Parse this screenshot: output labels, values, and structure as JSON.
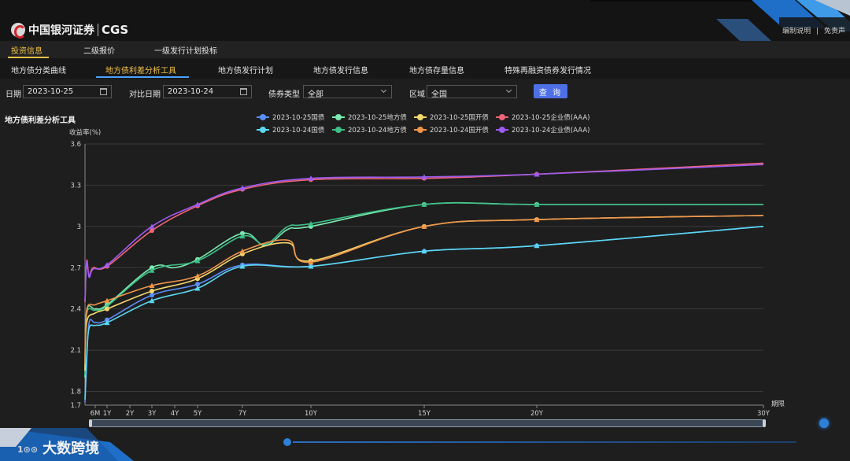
{
  "header": {
    "brand_cn": "中国银河证券",
    "brand_en": "CGS",
    "links": [
      "编制说明",
      "|",
      "免责声"
    ]
  },
  "nav1": [
    "投资信息",
    "二级报价",
    "一级发行计划投标"
  ],
  "nav2": [
    "地方债分类曲线",
    "地方债利差分析工具",
    "地方债发行计划",
    "地方债发行信息",
    "地方债存量信息",
    "特殊再融资债券发行情况"
  ],
  "filters": {
    "date_label": "日期",
    "date_value": "2023-10-25",
    "compare_label": "对比日期",
    "compare_value": "2023-10-24",
    "bond_type_label": "债券类型",
    "bond_type_value": "全部",
    "region_label": "区域",
    "region_value": "全国",
    "query_label": "查 询"
  },
  "chart_title": "地方债利差分析工具",
  "bottom_brand": "大数跨境",
  "bottom_brand_mark": "1⊙⊙",
  "colors": {
    "gov25": "#5b8ff9",
    "gov24": "#5ad8f2",
    "local25": "#7bebb0",
    "local24": "#3dbf86",
    "cdb25": "#f5d76e",
    "cdb24": "#f0954a",
    "corp25": "#f06478",
    "corp24": "#9c5cf2"
  },
  "chart_data": {
    "type": "line",
    "title": "",
    "ylabel": "收益率(%)",
    "xlabel": "期限",
    "ylim": [
      1.7,
      3.6
    ],
    "yticks": [
      1.7,
      1.8,
      2.1,
      2.4,
      2.7,
      3,
      3.3,
      3.6
    ],
    "x_ticks": [
      {
        "label": "6M",
        "t": 0.5
      },
      {
        "label": "1Y",
        "t": 1
      },
      {
        "label": "2Y",
        "t": 2
      },
      {
        "label": "3Y",
        "t": 3
      },
      {
        "label": "4Y",
        "t": 4
      },
      {
        "label": "5Y",
        "t": 5
      },
      {
        "label": "7Y",
        "t": 7
      },
      {
        "label": "10Y",
        "t": 10
      },
      {
        "label": "15Y",
        "t": 15
      },
      {
        "label": "20Y",
        "t": 20
      },
      {
        "label": "30Y",
        "t": 30
      }
    ],
    "legend_position": "top",
    "series": [
      {
        "name": "2023-10-25国债",
        "color": "#5b8ff9",
        "marker": "circle",
        "points": [
          [
            0,
            1.72
          ],
          [
            0.08,
            2.0
          ],
          [
            0.2,
            2.3
          ],
          [
            0.5,
            2.3
          ],
          [
            1,
            2.32
          ],
          [
            3,
            2.5
          ],
          [
            5,
            2.58
          ],
          [
            7,
            2.72
          ],
          [
            10,
            2.71
          ],
          [
            15,
            2.82
          ],
          [
            20,
            2.86
          ],
          [
            30,
            3.0
          ]
        ]
      },
      {
        "name": "2023-10-24国债",
        "color": "#5ad8f2",
        "marker": "triangle",
        "points": [
          [
            0,
            1.74
          ],
          [
            0.08,
            2.05
          ],
          [
            0.2,
            2.26
          ],
          [
            0.5,
            2.28
          ],
          [
            1,
            2.3
          ],
          [
            3,
            2.46
          ],
          [
            5,
            2.55
          ],
          [
            7,
            2.71
          ],
          [
            10,
            2.71
          ],
          [
            15,
            2.82
          ],
          [
            20,
            2.86
          ],
          [
            30,
            3.0
          ]
        ]
      },
      {
        "name": "2023-10-25地方债",
        "color": "#7bebb0",
        "marker": "circle",
        "points": [
          [
            0,
            1.9
          ],
          [
            0.08,
            2.38
          ],
          [
            0.5,
            2.4
          ],
          [
            1,
            2.43
          ],
          [
            3,
            2.7
          ],
          [
            4,
            2.7
          ],
          [
            5,
            2.76
          ],
          [
            7,
            2.95
          ],
          [
            8,
            2.86
          ],
          [
            9,
            2.98
          ],
          [
            10,
            3.0
          ],
          [
            15,
            3.16
          ],
          [
            20,
            3.16
          ],
          [
            30,
            3.16
          ]
        ]
      },
      {
        "name": "2023-10-24地方债",
        "color": "#3dbf86",
        "marker": "triangle",
        "points": [
          [
            0,
            1.92
          ],
          [
            0.08,
            2.36
          ],
          [
            0.5,
            2.39
          ],
          [
            1,
            2.42
          ],
          [
            3,
            2.68
          ],
          [
            5,
            2.75
          ],
          [
            7,
            2.93
          ],
          [
            8,
            2.87
          ],
          [
            9,
            3.0
          ],
          [
            10,
            3.02
          ],
          [
            15,
            3.16
          ],
          [
            20,
            3.16
          ],
          [
            30,
            3.16
          ]
        ]
      },
      {
        "name": "2023-10-25国开债",
        "color": "#f5d76e",
        "marker": "circle",
        "points": [
          [
            0,
            1.95
          ],
          [
            0.08,
            2.3
          ],
          [
            0.5,
            2.37
          ],
          [
            1,
            2.4
          ],
          [
            3,
            2.53
          ],
          [
            5,
            2.62
          ],
          [
            7,
            2.8
          ],
          [
            9,
            2.88
          ],
          [
            10,
            2.75
          ],
          [
            15,
            3.0
          ],
          [
            20,
            3.05
          ],
          [
            30,
            3.08
          ]
        ]
      },
      {
        "name": "2023-10-24国开债",
        "color": "#f0954a",
        "marker": "triangle",
        "points": [
          [
            0,
            2.0
          ],
          [
            0.08,
            2.39
          ],
          [
            0.5,
            2.43
          ],
          [
            1,
            2.46
          ],
          [
            3,
            2.57
          ],
          [
            5,
            2.64
          ],
          [
            7,
            2.82
          ],
          [
            9,
            2.9
          ],
          [
            10,
            2.74
          ],
          [
            15,
            3.0
          ],
          [
            20,
            3.05
          ],
          [
            30,
            3.08
          ]
        ]
      },
      {
        "name": "2023-10-25企业债(AAA)",
        "color": "#f06478",
        "marker": "circle",
        "points": [
          [
            0,
            2.45
          ],
          [
            0.08,
            2.75
          ],
          [
            0.2,
            2.64
          ],
          [
            0.4,
            2.7
          ],
          [
            1,
            2.71
          ],
          [
            3,
            2.97
          ],
          [
            5,
            3.15
          ],
          [
            7,
            3.27
          ],
          [
            10,
            3.34
          ],
          [
            15,
            3.35
          ],
          [
            20,
            3.38
          ],
          [
            30,
            3.46
          ]
        ]
      },
      {
        "name": "2023-10-24企业债(AAA)",
        "color": "#9c5cf2",
        "marker": "triangle",
        "points": [
          [
            0,
            2.46
          ],
          [
            0.08,
            2.74
          ],
          [
            0.2,
            2.63
          ],
          [
            0.4,
            2.69
          ],
          [
            1,
            2.72
          ],
          [
            3,
            3.0
          ],
          [
            5,
            3.16
          ],
          [
            7,
            3.28
          ],
          [
            10,
            3.35
          ],
          [
            15,
            3.36
          ],
          [
            20,
            3.38
          ],
          [
            30,
            3.45
          ]
        ]
      }
    ]
  }
}
